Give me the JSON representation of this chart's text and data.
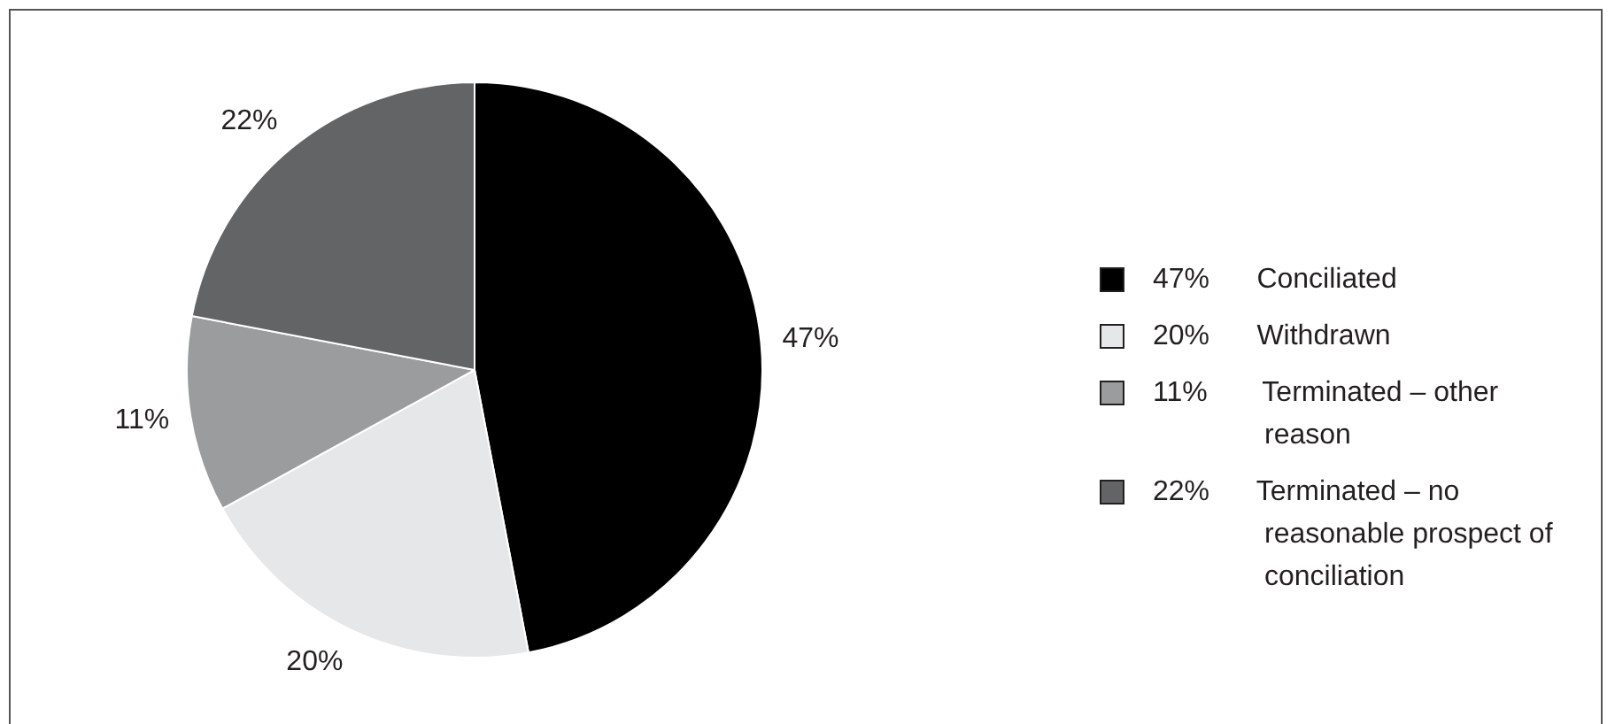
{
  "chart_data": {
    "type": "pie",
    "categories": [
      "Conciliated",
      "Withdrawn",
      "Terminated – other reason",
      "Terminated – no reasonable prospect of conciliation"
    ],
    "values": [
      47,
      20,
      11,
      22
    ],
    "colors": [
      "#000000",
      "#e6e7e8",
      "#9b9c9e",
      "#636466"
    ],
    "value_labels": [
      "47%",
      "20%",
      "11%",
      "22%"
    ],
    "legend": "right"
  }
}
